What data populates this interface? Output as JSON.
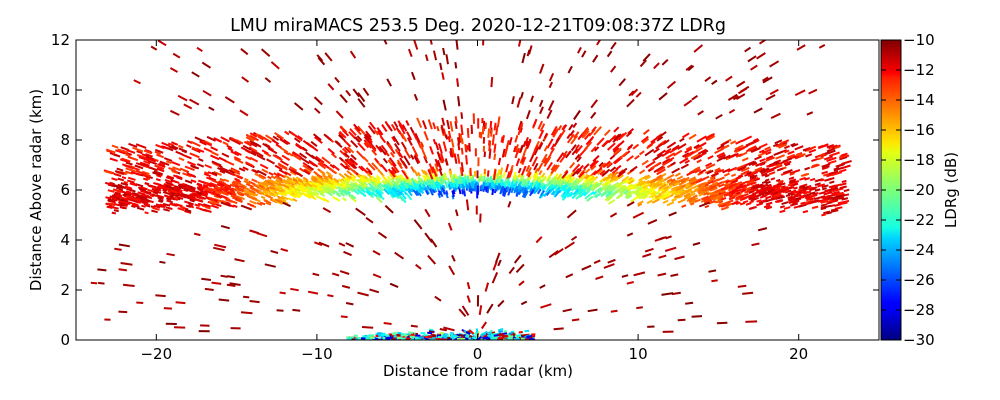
{
  "chart_data": {
    "type": "heatmap",
    "subtype": "radar-rhi-scan",
    "title": "LMU miraMACS 253.5 Deg. 2020-12-21T09:08:37Z  LDRg",
    "xlabel": "Distance from radar (km)",
    "ylabel": "Distance Above radar  (km)",
    "xlim": [
      -25,
      25
    ],
    "ylim": [
      0,
      12
    ],
    "xticks": [
      -20,
      -10,
      0,
      10,
      20
    ],
    "xtick_labels": [
      "−20",
      "−10",
      "0",
      "10",
      "20"
    ],
    "yticks": [
      0,
      2,
      4,
      6,
      8,
      10,
      12
    ],
    "ytick_labels": [
      "0",
      "2",
      "4",
      "6",
      "8",
      "10",
      "12"
    ],
    "colorbar": {
      "label": "LDRg (dB)",
      "colormap": "jet",
      "range": [
        -30,
        -10
      ],
      "ticks": [
        -10,
        -12,
        -14,
        -16,
        -18,
        -20,
        -22,
        -24,
        -26,
        -28,
        -30
      ],
      "tick_labels": [
        "−10",
        "−12",
        "−14",
        "−16",
        "−18",
        "−20",
        "−22",
        "−24",
        "−26",
        "−28",
        "−30"
      ]
    },
    "features": [
      {
        "name": "ice-cloud-layer",
        "x_range": [
          -23,
          23
        ],
        "height_center_km": 6.1,
        "half_thickness_km": 0.6,
        "ldr_center_db": -28,
        "ldr_edge_db": -12
      },
      {
        "name": "upper-depolarizing-layer",
        "x_range": [
          -23,
          23
        ],
        "height_range_km": [
          6.6,
          8.9
        ],
        "ldr_db": -11
      },
      {
        "name": "sparse-high-echoes",
        "height_range_km": [
          8.9,
          12
        ],
        "ldr_db": -10
      },
      {
        "name": "sparse-low-echoes",
        "height_range_km": [
          0.3,
          5.5
        ],
        "ldr_db": -10
      },
      {
        "name": "surface-clutter",
        "x_range": [
          -8,
          3.5
        ],
        "height_range_km": [
          0,
          1
        ],
        "ldr_db": -22
      }
    ]
  }
}
